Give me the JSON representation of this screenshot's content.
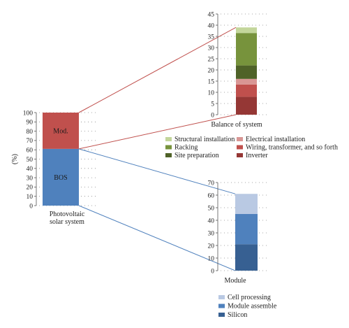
{
  "chart_data": [
    {
      "type": "bar",
      "stacked": true,
      "categories": [
        "Photovoltaic solar system"
      ],
      "ylabel": "(%)",
      "ylim": [
        0,
        100
      ],
      "yticks": [
        0,
        10,
        20,
        30,
        40,
        50,
        60,
        70,
        80,
        90,
        100
      ],
      "grid": true,
      "series": [
        {
          "name": "BOS",
          "values": [
            61
          ],
          "color": "#4f81bd"
        },
        {
          "name": "Mod.",
          "values": [
            39
          ],
          "color": "#c0504d"
        }
      ]
    },
    {
      "type": "bar",
      "stacked": true,
      "categories": [
        "Balance of system"
      ],
      "ylim": [
        0,
        45
      ],
      "yticks": [
        0,
        5,
        10,
        15,
        20,
        25,
        30,
        35,
        40,
        45
      ],
      "grid": true,
      "series": [
        {
          "name": "Inverter",
          "values": [
            8
          ],
          "color": "#953735"
        },
        {
          "name": "Wiring, transformer, and so forth",
          "values": [
            5.5
          ],
          "color": "#c0504d"
        },
        {
          "name": "Electrical installation",
          "values": [
            2.5
          ],
          "color": "#d99694"
        },
        {
          "name": "Site preparation",
          "values": [
            6
          ],
          "color": "#4f6228"
        },
        {
          "name": "Racking",
          "values": [
            14.5
          ],
          "color": "#77933c"
        },
        {
          "name": "Structural installation",
          "values": [
            2.5
          ],
          "color": "#c3d69b"
        }
      ],
      "legend_order": [
        "Structural installation",
        "Electrical installation",
        "Racking",
        "Wiring, transformer, and so forth",
        "Site preparation",
        "Inverter"
      ]
    },
    {
      "type": "bar",
      "stacked": true,
      "categories": [
        "Module"
      ],
      "ylim": [
        0,
        70
      ],
      "yticks": [
        0,
        10,
        20,
        30,
        40,
        50,
        60,
        70
      ],
      "grid": true,
      "series": [
        {
          "name": "Silicon",
          "values": [
            21
          ],
          "color": "#376092"
        },
        {
          "name": "Module assemble",
          "values": [
            24
          ],
          "color": "#4f81bd"
        },
        {
          "name": "Cell processing",
          "values": [
            16
          ],
          "color": "#b9c9e3"
        }
      ],
      "legend_order": [
        "Cell processing",
        "Module assemble",
        "Silicon"
      ]
    }
  ],
  "connector_colors": {
    "mod": "#c0504d",
    "bos": "#4f81bd"
  }
}
